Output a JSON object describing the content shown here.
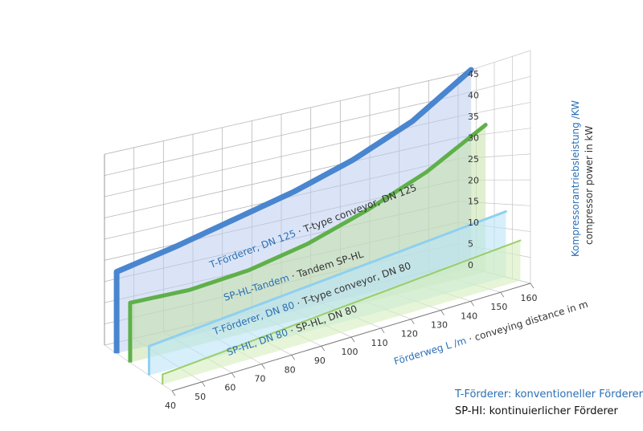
{
  "chart_data": {
    "type": "area",
    "projection": "3d",
    "x": [
      40,
      50,
      60,
      70,
      80,
      90,
      100,
      110,
      120,
      130,
      140,
      150,
      160
    ],
    "xlabel_de": "Förderweg L",
    "xlabel_unit": "/m",
    "xlabel_en": "conveying distance in m",
    "y_ticks": [
      0,
      5,
      10,
      15,
      20,
      25,
      30,
      35,
      40,
      45
    ],
    "ylim": [
      0,
      45
    ],
    "ylabel_de": "Kompressorantriebsleistung /KW",
    "ylabel_en": "compressor power in kW",
    "series": [
      {
        "name_de": "T-Förderer, DN 125",
        "name_en": "T-type conveyor, DN 125",
        "color": "#4a86cf",
        "x": [
          40,
          60,
          80,
          100,
          120,
          140,
          160
        ],
        "values": [
          18.5,
          21,
          24,
          27,
          31,
          36.5,
          45
        ]
      },
      {
        "name_de": "SP-HL-Tandem",
        "name_en": "Tandem SP-HL",
        "color": "#5fb04a",
        "x": [
          40,
          60,
          80,
          100,
          120,
          140,
          160
        ],
        "values": [
          13,
          12.5,
          13.5,
          16,
          20,
          25,
          32
        ]
      },
      {
        "name_de": "T-Förderer, DN 80",
        "name_en": "T-type conveyor, DN 80",
        "color": "#8fd0ef",
        "x": [
          40,
          80,
          120,
          160
        ],
        "values": [
          6,
          8.5,
          11,
          13.5
        ]
      },
      {
        "name_de": "SP-HL, DN 80",
        "name_en": "SP-HL, DN 80",
        "color": "#9acd6a",
        "x": [
          40,
          80,
          120,
          160
        ],
        "values": [
          2,
          4,
          6,
          8
        ]
      }
    ],
    "legend": [
      {
        "label": "T-Förderer: konventioneller Förderer",
        "color": "#2a6fb6"
      },
      {
        "label": "SP-HI: kontinuierlicher Förderer",
        "color": "#111111"
      }
    ],
    "grid": true
  }
}
